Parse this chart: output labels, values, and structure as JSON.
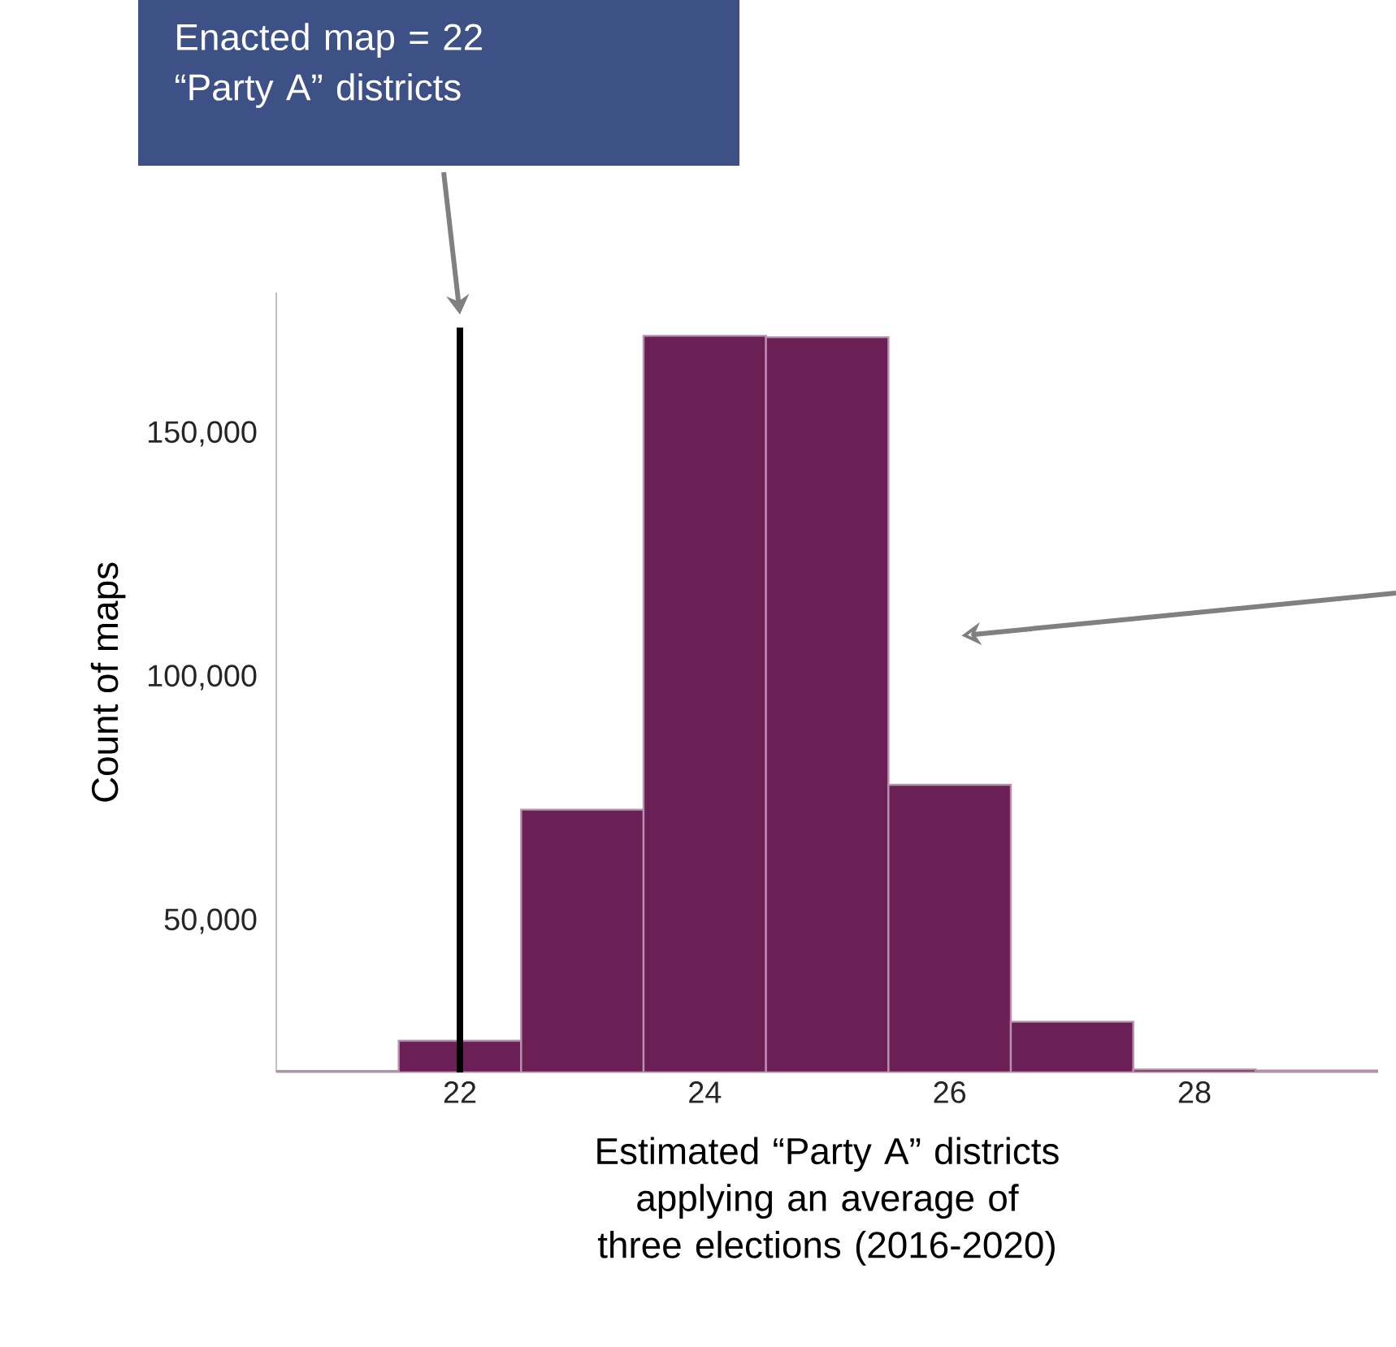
{
  "chart_data": {
    "type": "histogram",
    "xlabel": "Estimated “Party A” districts applying an average of three elections (2016-2020)",
    "ylabel": "Count of maps",
    "bins": [
      20.5,
      21.5,
      22.5,
      23.5,
      24.5,
      25.5,
      26.5,
      27.5,
      28.5,
      29.5
    ],
    "values": [
      19300,
      25500,
      72900,
      170100,
      169800,
      78000,
      29400,
      19600,
      19400
    ],
    "color": "#6a1f55",
    "xlim": [
      20.5,
      29.5
    ],
    "ylim": [
      19000,
      179000
    ],
    "xticks": [
      22,
      24,
      26,
      28
    ],
    "yticks": [
      {
        "value": 50000,
        "label": "50,000"
      },
      {
        "value": 100000,
        "label": "100,000"
      },
      {
        "value": 150000,
        "label": "150,000"
      }
    ],
    "grid": false,
    "ref_lines": [
      {
        "axis": "x",
        "value": 22,
        "color": "#000000"
      }
    ],
    "annotations": [
      "Enacted map =  22 “Party A” districts"
    ]
  }
}
